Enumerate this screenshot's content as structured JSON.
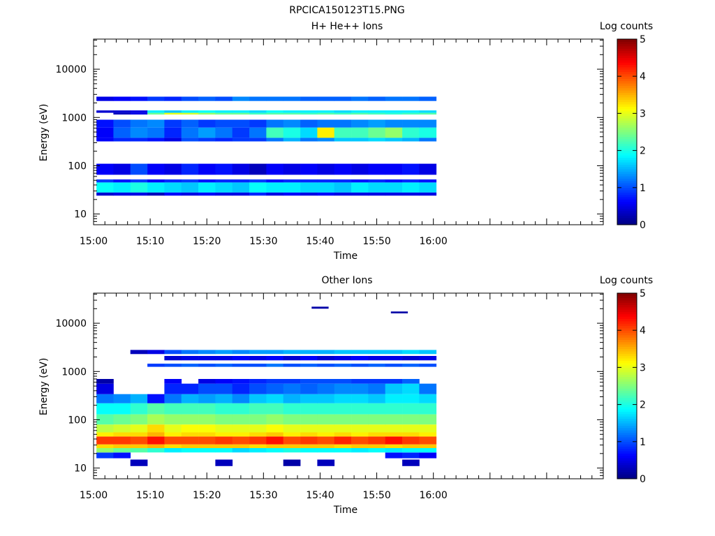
{
  "figure_title": "RPCICA150123T15.PNG",
  "colormap": [
    "#00007f",
    "#0000ff",
    "#007fff",
    "#00ffff",
    "#7fff7f",
    "#ffff00",
    "#ff7f00",
    "#ff0000",
    "#7f0000"
  ],
  "chart_data": [
    {
      "type": "heatmap",
      "title": "H+ He++ Ions",
      "xlabel": "Time",
      "ylabel": "Energy (eV)",
      "x_ticks": [
        "15:00",
        "15:10",
        "15:20",
        "15:30",
        "15:40",
        "15:50",
        "16:00"
      ],
      "y_ticks": [
        "10",
        "100",
        "1000",
        "10000"
      ],
      "y_scale": "log",
      "ylim": [
        6,
        42000
      ],
      "xlim": [
        "15:00",
        "16:30"
      ],
      "colorbar": {
        "label": "Log counts",
        "ticks": [
          "0",
          "1",
          "2",
          "3",
          "4",
          "5"
        ],
        "range": [
          0,
          5
        ]
      },
      "time_bins": [
        "15:02",
        "15:05",
        "15:08",
        "15:11",
        "15:14",
        "15:17",
        "15:20",
        "15:23",
        "15:26",
        "15:29",
        "15:32",
        "15:35",
        "15:38",
        "15:41",
        "15:44",
        "15:47",
        "15:50",
        "15:53",
        "15:56",
        "15:59"
      ],
      "energy_bands": [
        {
          "e_low": 24,
          "e_high": 28,
          "log_counts": [
            0.4,
            0.5,
            0.5,
            0.3,
            0.6,
            0.5,
            0.6,
            0.5,
            0.5,
            0.8,
            0.5,
            0.6,
            0.5,
            0.6,
            0.5,
            0.5,
            0.5,
            0.5,
            0.5,
            0.5
          ]
        },
        {
          "e_low": 28,
          "e_high": 45,
          "log_counts": [
            1.9,
            1.8,
            2.0,
            1.8,
            1.7,
            1.6,
            1.8,
            1.7,
            1.6,
            1.9,
            1.8,
            1.8,
            1.7,
            1.7,
            1.6,
            1.8,
            1.7,
            1.7,
            1.8,
            1.7
          ]
        },
        {
          "e_low": 45,
          "e_high": 52,
          "log_counts": [
            0.9,
            0.7,
            0.9,
            0.6,
            0.8,
            0.9,
            0.7,
            0.8,
            0.8,
            0.9,
            0.7,
            0.8,
            0.8,
            0.8,
            0.8,
            0.7,
            0.8,
            0.7,
            0.8,
            0.7
          ]
        },
        {
          "e_low": 65,
          "e_high": 110,
          "log_counts": [
            0.6,
            0.5,
            1.0,
            0.6,
            0.5,
            0.8,
            0.6,
            0.7,
            0.5,
            0.3,
            0.6,
            0.5,
            0.6,
            0.5,
            0.6,
            0.5,
            0.6,
            0.6,
            0.7,
            0.5
          ]
        },
        {
          "e_low": 320,
          "e_high": 380,
          "log_counts": [
            0.6,
            0.8,
            0.8,
            0.7,
            0.5,
            1.0,
            0.9,
            0.8,
            0.9,
            0.9,
            1.2,
            1.5,
            1.2,
            1.3,
            1.6,
            1.6,
            1.7,
            1.6,
            1.5,
            1.2
          ]
        },
        {
          "e_low": 380,
          "e_high": 620,
          "log_counts": [
            0.6,
            1.1,
            1.3,
            1.2,
            0.8,
            1.2,
            1.4,
            1.2,
            0.9,
            1.2,
            2.2,
            2.0,
            1.7,
            3.2,
            2.2,
            2.2,
            2.4,
            2.6,
            2.1,
            2.0
          ]
        },
        {
          "e_low": 620,
          "e_high": 900,
          "log_counts": [
            0.7,
            1.0,
            1.2,
            1.3,
            0.9,
            1.1,
            0.9,
            1.0,
            1.0,
            0.9,
            1.2,
            1.3,
            1.1,
            1.2,
            1.2,
            1.3,
            1.4,
            1.3,
            1.3,
            1.3
          ]
        },
        {
          "e_low": 1150,
          "e_high": 1250,
          "log_counts": [
            0,
            0.3,
            0.5,
            2.4,
            3.0,
            2.9,
            2.6,
            2.4,
            2.4,
            2.2,
            2.3,
            2.3,
            2.2,
            2.3,
            2.2,
            2.3,
            2.2,
            2.1,
            2.2,
            2.3
          ]
        },
        {
          "e_low": 1250,
          "e_high": 1400,
          "log_counts": [
            0.4,
            0.4,
            0.5,
            1.8,
            1.6,
            1.8,
            1.9,
            1.8,
            1.8,
            1.7,
            1.9,
            1.8,
            1.8,
            1.8,
            1.7,
            1.8,
            1.8,
            1.8,
            1.8,
            1.7
          ]
        },
        {
          "e_low": 2200,
          "e_high": 2700,
          "log_counts": [
            0.5,
            0.6,
            0.7,
            0.9,
            0.8,
            1.0,
            1.1,
            1.0,
            1.3,
            1.2,
            1.2,
            1.2,
            1.1,
            1.1,
            1.1,
            1.2,
            1.1,
            1.2,
            1.2,
            1.1
          ]
        }
      ]
    },
    {
      "type": "heatmap",
      "title": "Other Ions",
      "xlabel": "Time",
      "ylabel": "Energy (eV)",
      "x_ticks": [
        "15:00",
        "15:10",
        "15:20",
        "15:30",
        "15:40",
        "15:50",
        "16:00"
      ],
      "y_ticks": [
        "10",
        "100",
        "1000",
        "10000"
      ],
      "y_scale": "log",
      "ylim": [
        6,
        42000
      ],
      "xlim": [
        "15:00",
        "16:30"
      ],
      "colorbar": {
        "label": "Log counts",
        "ticks": [
          "0",
          "1",
          "2",
          "3",
          "4",
          "5"
        ],
        "range": [
          0,
          5
        ]
      },
      "time_bins": [
        "15:02",
        "15:05",
        "15:08",
        "15:11",
        "15:14",
        "15:17",
        "15:20",
        "15:23",
        "15:26",
        "15:29",
        "15:32",
        "15:35",
        "15:38",
        "15:41",
        "15:44",
        "15:47",
        "15:50",
        "15:53",
        "15:56",
        "15:59"
      ],
      "energy_bands": [
        {
          "e_low": 11,
          "e_high": 15,
          "log_counts": [
            0,
            0,
            0.3,
            0,
            0,
            0,
            0,
            0.3,
            0,
            0,
            0,
            0.2,
            0,
            0.3,
            0,
            0,
            0,
            0,
            0.3,
            0
          ]
        },
        {
          "e_low": 16,
          "e_high": 21,
          "log_counts": [
            0.9,
            0.7,
            0,
            0,
            0,
            0,
            0,
            0,
            0,
            0,
            0,
            0,
            0,
            0,
            0,
            0,
            0,
            0.7,
            0.8,
            0.6
          ]
        },
        {
          "e_low": 21,
          "e_high": 26,
          "log_counts": [
            2.6,
            2.4,
            2.3,
            2.1,
            1.8,
            1.9,
            1.9,
            1.9,
            1.7,
            1.8,
            1.9,
            2.0,
            1.9,
            1.9,
            1.9,
            1.8,
            1.9,
            1.8,
            1.9,
            1.9
          ]
        },
        {
          "e_low": 26,
          "e_high": 31,
          "log_counts": [
            3.3,
            3.4,
            3.4,
            3.5,
            3.3,
            3.4,
            3.4,
            3.4,
            3.4,
            3.3,
            3.4,
            3.4,
            3.4,
            3.4,
            3.3,
            3.4,
            3.4,
            3.3,
            3.4,
            3.4
          ]
        },
        {
          "e_low": 31,
          "e_high": 45,
          "log_counts": [
            4.1,
            4.1,
            4.0,
            4.3,
            4.0,
            4.0,
            4.0,
            4.1,
            4.0,
            4.1,
            4.3,
            4.0,
            4.1,
            4.0,
            4.2,
            4.0,
            4.1,
            4.3,
            4.1,
            4.0
          ]
        },
        {
          "e_low": 45,
          "e_high": 55,
          "log_counts": [
            3.2,
            3.3,
            3.3,
            3.5,
            3.2,
            3.3,
            3.3,
            3.2,
            3.2,
            3.3,
            3.4,
            3.2,
            3.3,
            3.2,
            3.3,
            3.2,
            3.3,
            3.3,
            3.3,
            3.2
          ]
        },
        {
          "e_low": 55,
          "e_high": 80,
          "log_counts": [
            2.8,
            2.9,
            3.0,
            3.3,
            3.0,
            3.1,
            3.1,
            3.0,
            3.0,
            3.0,
            3.1,
            3.0,
            3.0,
            3.0,
            3.0,
            3.0,
            3.0,
            3.0,
            3.0,
            3.0
          ]
        },
        {
          "e_low": 80,
          "e_high": 130,
          "log_counts": [
            2.3,
            2.4,
            2.5,
            2.7,
            2.6,
            2.6,
            2.6,
            2.5,
            2.5,
            2.5,
            2.6,
            2.5,
            2.5,
            2.5,
            2.5,
            2.5,
            2.5,
            2.5,
            2.5,
            2.5
          ]
        },
        {
          "e_low": 130,
          "e_high": 220,
          "log_counts": [
            1.9,
            1.9,
            2.1,
            2.3,
            2.2,
            2.2,
            2.2,
            2.1,
            2.1,
            2.2,
            2.2,
            2.1,
            2.1,
            2.1,
            2.1,
            2.1,
            2.1,
            2.1,
            2.1,
            2.1
          ]
        },
        {
          "e_low": 220,
          "e_high": 340,
          "log_counts": [
            1.2,
            1.3,
            1.5,
            0.7,
            1.2,
            1.5,
            1.4,
            1.5,
            1.3,
            1.6,
            1.7,
            1.5,
            1.6,
            1.6,
            1.7,
            1.7,
            1.6,
            1.8,
            1.8,
            1.7
          ]
        },
        {
          "e_low": 340,
          "e_high": 560,
          "log_counts": [
            0.5,
            0,
            0,
            0,
            0.8,
            0.8,
            1.0,
            1.0,
            0.8,
            1.0,
            1.1,
            1.2,
            1.1,
            1.2,
            1.3,
            1.3,
            1.2,
            1.6,
            1.7,
            1.2
          ]
        },
        {
          "e_low": 560,
          "e_high": 700,
          "log_counts": [
            0.2,
            0,
            0,
            0,
            0.6,
            0,
            0.5,
            0.6,
            0.7,
            0.8,
            0.9,
            0.9,
            1.0,
            1.0,
            1.0,
            0.9,
            0.9,
            0.9,
            1.1,
            0
          ]
        },
        {
          "e_low": 1250,
          "e_high": 1450,
          "log_counts": [
            0,
            0,
            0,
            0.9,
            1.0,
            1.1,
            1.0,
            1.1,
            1.0,
            1.0,
            1.2,
            1.0,
            1.1,
            1.0,
            1.1,
            1.0,
            1.1,
            1.0,
            1.1,
            1.0
          ]
        },
        {
          "e_low": 1700,
          "e_high": 2100,
          "log_counts": [
            0,
            0,
            0,
            0,
            0.4,
            0.5,
            0.5,
            0.5,
            0.6,
            0.5,
            0.6,
            0.4,
            0.6,
            0.4,
            0.5,
            0.6,
            0.5,
            0.5,
            0.4,
            0.5
          ]
        },
        {
          "e_low": 2300,
          "e_high": 2800,
          "log_counts": [
            0,
            0,
            0.3,
            0.5,
            1.0,
            1.2,
            1.3,
            1.4,
            1.3,
            1.4,
            1.4,
            1.5,
            1.5,
            1.5,
            1.6,
            1.6,
            1.6,
            1.6,
            1.7,
            1.6
          ]
        }
      ],
      "extra_points": [
        {
          "time": "15:40",
          "e_low": 20000,
          "e_high": 22000,
          "log_counts": 0.2
        },
        {
          "time": "15:54",
          "e_low": 16000,
          "e_high": 17500,
          "log_counts": 0.2
        }
      ]
    }
  ]
}
